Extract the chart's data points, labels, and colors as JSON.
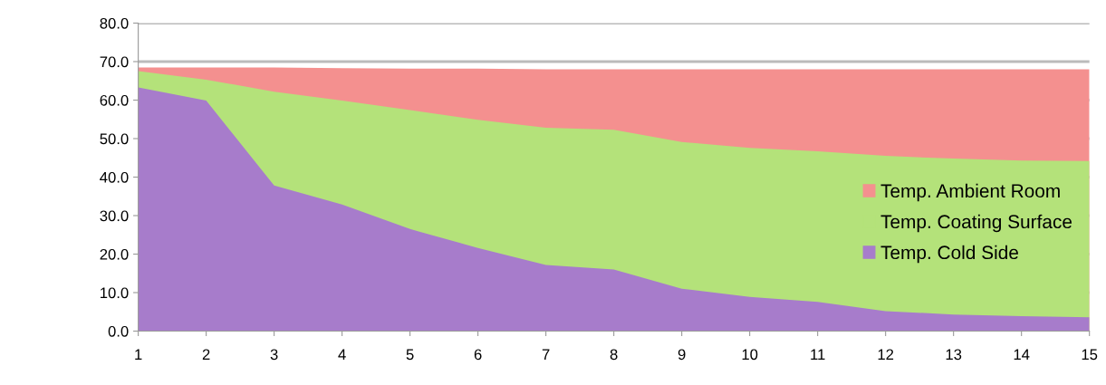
{
  "chart_data": {
    "type": "area",
    "x": [
      1,
      2,
      3,
      4,
      5,
      6,
      7,
      8,
      9,
      10,
      11,
      12,
      13,
      14,
      15
    ],
    "series": [
      {
        "name": "Temp. Ambient Room",
        "color": "#f4908f",
        "values": [
          68.5,
          68.5,
          68.5,
          68.3,
          68.2,
          68.2,
          68,
          68,
          68,
          68,
          68,
          68,
          68,
          68,
          68
        ]
      },
      {
        "name": "Temp. Coating Surface",
        "color": "#b4e27a",
        "values": [
          67.5,
          65.3,
          62.2,
          59.9,
          57.4,
          54.9,
          52.8,
          52.3,
          49.1,
          47.6,
          46.7,
          45.5,
          44.8,
          44.3,
          44.2
        ]
      },
      {
        "name": "Temp. Cold Side",
        "color": "#a77ccb",
        "values": [
          63.3,
          59.9,
          37.8,
          32.9,
          26.5,
          21.6,
          17.2,
          16,
          11,
          8.9,
          7.6,
          5.2,
          4.3,
          3.9,
          3.6
        ]
      }
    ],
    "xlim": [
      1,
      15
    ],
    "xticks": [
      1,
      2,
      3,
      4,
      5,
      6,
      7,
      8,
      9,
      10,
      11,
      12,
      13,
      14,
      15
    ],
    "ylim": [
      0,
      80
    ],
    "yticks": [
      {
        "value": 0,
        "label": "0.0"
      },
      {
        "value": 10,
        "label": "10.0"
      },
      {
        "value": 20,
        "label": "20.0"
      },
      {
        "value": 30,
        "label": "30.0"
      },
      {
        "value": 40,
        "label": "40.0"
      },
      {
        "value": 50,
        "label": "50.0"
      },
      {
        "value": 60,
        "label": "60.0"
      },
      {
        "value": 70,
        "label": "70.0"
      },
      {
        "value": 80,
        "label": "80.0"
      }
    ],
    "grid": "y",
    "legend": "right"
  }
}
